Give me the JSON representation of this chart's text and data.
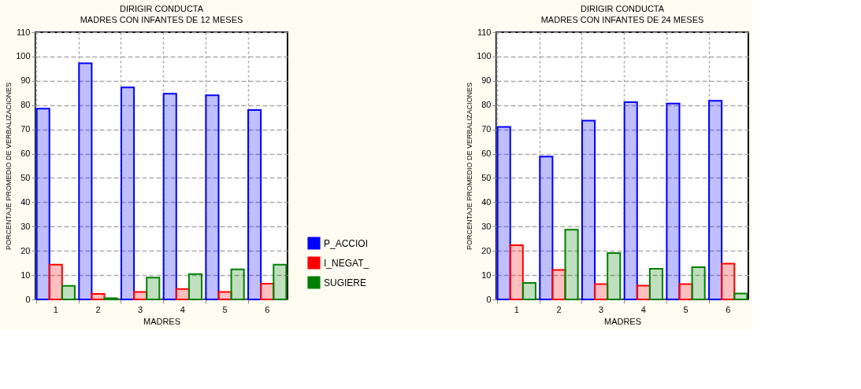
{
  "chart_data": [
    {
      "type": "bar",
      "title": "DIRIGIR CONDUCTA",
      "subtitle": "MADRES CON INFANTES DE 12 MESES",
      "xlabel": "MADRES",
      "ylabel": "PORCENTAJE PROMEDIO DE VERBALIZACIONES",
      "categories": [
        "1",
        "2",
        "3",
        "4",
        "5",
        "6"
      ],
      "series": [
        {
          "name": "P_ACCIOI",
          "color": "#0000ff",
          "values": [
            78.5,
            97.2,
            87.3,
            84.7,
            84.0,
            78.0
          ]
        },
        {
          "name": "I_NEGAT_",
          "color": "#ff0000",
          "values": [
            14.3,
            2.3,
            3.1,
            4.3,
            3.1,
            6.5
          ]
        },
        {
          "name": "SUGIERE",
          "color": "#008000",
          "values": [
            5.6,
            0.5,
            9.0,
            10.4,
            12.4,
            14.3
          ]
        }
      ],
      "ylim": [
        0,
        110
      ],
      "yticks": [
        0,
        10,
        20,
        30,
        40,
        50,
        60,
        70,
        80,
        90,
        100,
        110
      ],
      "grid": true,
      "legend": "bottom right"
    },
    {
      "type": "bar",
      "title": "DIRIGIR CONDUCTA",
      "subtitle": "MADRES CON INFANTES DE 24 MESES",
      "xlabel": "MADRES",
      "ylabel": "PORCENTAJE PROMEDIO DE VERBALIZACIONES",
      "categories": [
        "1",
        "2",
        "3",
        "4",
        "5",
        "6"
      ],
      "series": [
        {
          "color": "#0000ff",
          "values": [
            71.0,
            58.8,
            73.6,
            81.2,
            80.6,
            81.8
          ]
        },
        {
          "color": "#ff0000",
          "values": [
            22.3,
            12.1,
            6.3,
            5.7,
            6.3,
            14.7
          ]
        },
        {
          "color": "#008000",
          "values": [
            6.8,
            28.7,
            19.1,
            12.6,
            13.3,
            2.4
          ]
        }
      ],
      "ylim": [
        0,
        110
      ],
      "yticks": [
        0,
        10,
        20,
        30,
        40,
        50,
        60,
        70,
        80,
        90,
        100,
        110
      ],
      "grid": true,
      "legend": false
    }
  ]
}
